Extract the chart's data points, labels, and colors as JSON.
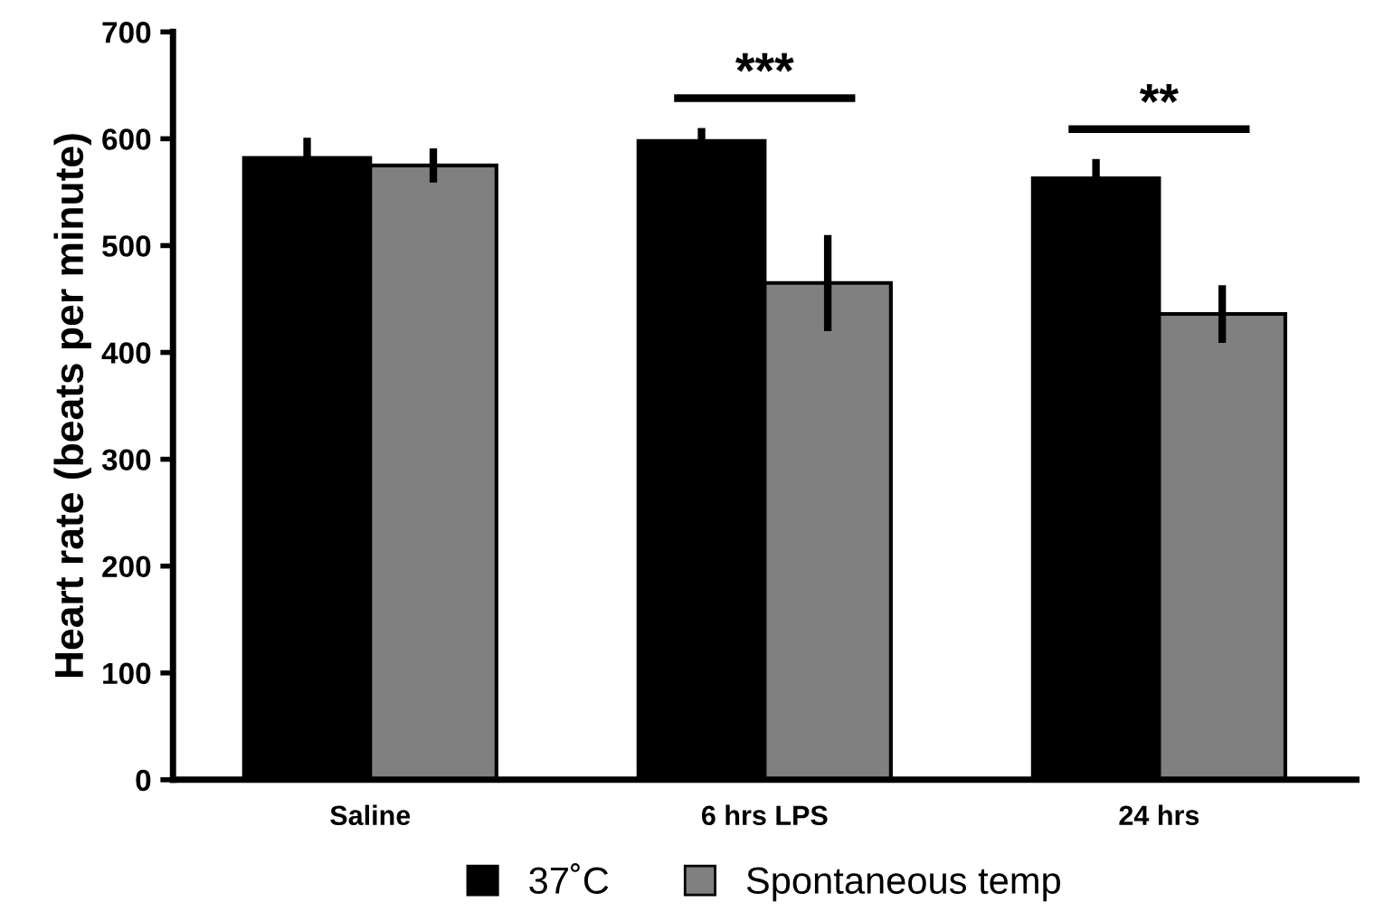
{
  "chart_data": {
    "type": "bar",
    "ylabel": "Heart rate (beats per minute)",
    "categories": [
      "Saline",
      "6 hrs LPS",
      "24 hrs"
    ],
    "series": [
      {
        "name": "37˚C",
        "color": "#000000",
        "values": [
          582,
          598,
          563
        ],
        "errors": [
          19,
          12,
          18
        ]
      },
      {
        "name": "Spontaneous temp",
        "color": "#808080",
        "values": [
          575,
          465,
          436
        ],
        "errors": [
          16,
          45,
          27
        ]
      }
    ],
    "ylim": [
      0,
      700
    ],
    "yticks": [
      0,
      100,
      200,
      300,
      400,
      500,
      600,
      700
    ],
    "grid": false,
    "legend": "bottom",
    "annotations": [
      "***",
      "**"
    ]
  }
}
